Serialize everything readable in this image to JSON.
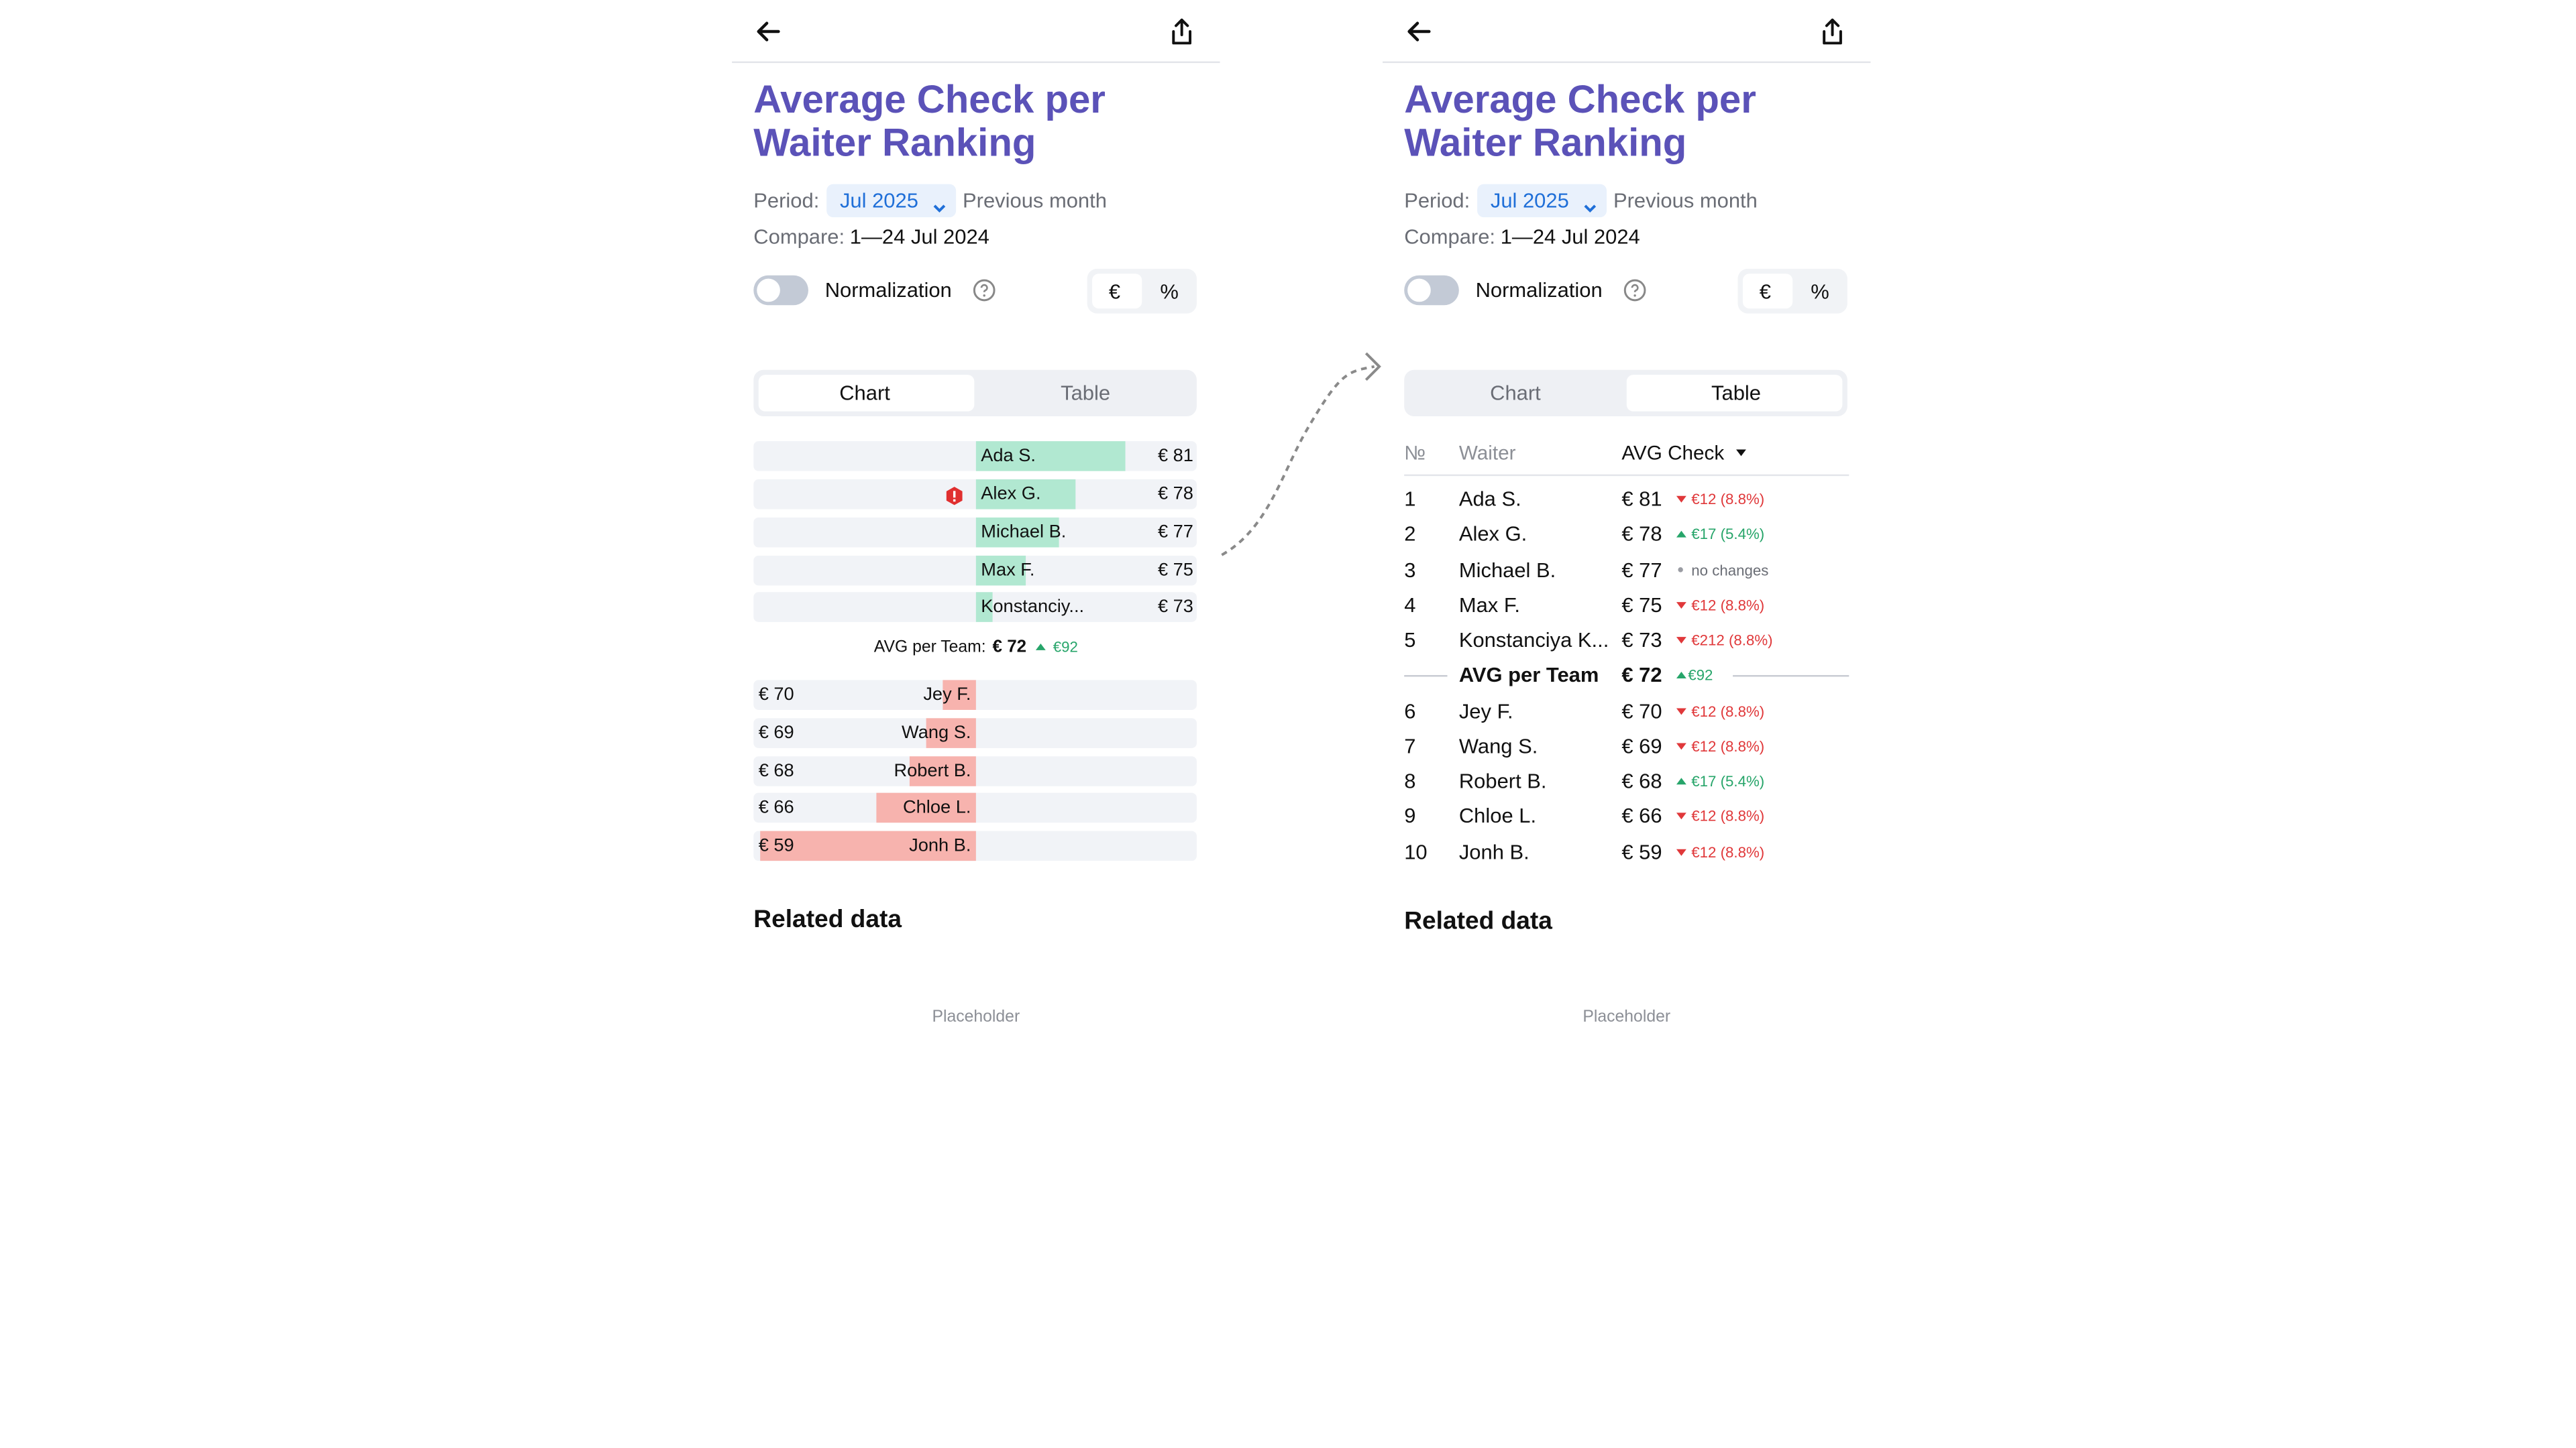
{
  "title": "Average Check per Waiter Ranking",
  "period": {
    "label": "Period:",
    "value": "Jul 2025",
    "note": "Previous month"
  },
  "compare": {
    "label": "Compare:",
    "value": "1—24 Jul 2024"
  },
  "normalization": "Normalization",
  "units": [
    "€",
    "%"
  ],
  "tabs": [
    "Chart",
    "Table"
  ],
  "related_title": "Related data",
  "placeholder": "Placeholder",
  "chart": {
    "above": [
      {
        "name": "Ada S.",
        "value": 81,
        "label": "€ 81"
      },
      {
        "name": "Alex G.",
        "value": 78,
        "label": "€ 78",
        "warning": true
      },
      {
        "name": "Michael B.",
        "value": 77,
        "label": "€ 77"
      },
      {
        "name": "Max F.",
        "value": 75,
        "label": "€ 75"
      },
      {
        "name": "Konstanciy...",
        "value": 73,
        "label": "€ 73"
      }
    ],
    "avg": {
      "label": "AVG per Team:",
      "value": 72,
      "value_label": "€ 72",
      "change": "€92",
      "direction": "up"
    },
    "below": [
      {
        "name": "Jey F.",
        "value": 70,
        "label": "€ 70"
      },
      {
        "name": "Wang S.",
        "value": 69,
        "label": "€ 69"
      },
      {
        "name": "Robert B.",
        "value": 68,
        "label": "€ 68"
      },
      {
        "name": "Chloe L.",
        "value": 66,
        "label": "€ 66"
      },
      {
        "name": "Jonh B.",
        "value": 59,
        "label": "€ 59"
      }
    ]
  },
  "table": {
    "columns": [
      "№",
      "Waiter",
      "AVG Check"
    ],
    "above": [
      {
        "rank": 1,
        "name": "Ada S.",
        "value": "€ 81",
        "change": "€12 (8.8%)",
        "direction": "down"
      },
      {
        "rank": 2,
        "name": "Alex G.",
        "value": "€ 78",
        "change": "€17 (5.4%)",
        "direction": "up"
      },
      {
        "rank": 3,
        "name": "Michael B.",
        "value": "€ 77",
        "change": "no changes",
        "direction": "none"
      },
      {
        "rank": 4,
        "name": "Max F.",
        "value": "€ 75",
        "change": "€12 (8.8%)",
        "direction": "down"
      },
      {
        "rank": 5,
        "name": "Konstanciya K...",
        "value": "€ 73",
        "change": "€212 (8.8%)",
        "direction": "down"
      }
    ],
    "avg": {
      "name": "AVG per Team",
      "value": "€ 72",
      "change": "€92",
      "direction": "up"
    },
    "below": [
      {
        "rank": 6,
        "name": "Jey F.",
        "value": "€ 70",
        "change": "€12 (8.8%)",
        "direction": "down"
      },
      {
        "rank": 7,
        "name": "Wang S.",
        "value": "€ 69",
        "change": "€12 (8.8%)",
        "direction": "down"
      },
      {
        "rank": 8,
        "name": "Robert B.",
        "value": "€ 68",
        "change": "€17 (5.4%)",
        "direction": "up"
      },
      {
        "rank": 9,
        "name": "Chloe L.",
        "value": "€ 66",
        "change": "€12 (8.8%)",
        "direction": "down"
      },
      {
        "rank": 10,
        "name": "Jonh B.",
        "value": "€ 59",
        "change": "€12 (8.8%)",
        "direction": "down"
      }
    ]
  }
}
